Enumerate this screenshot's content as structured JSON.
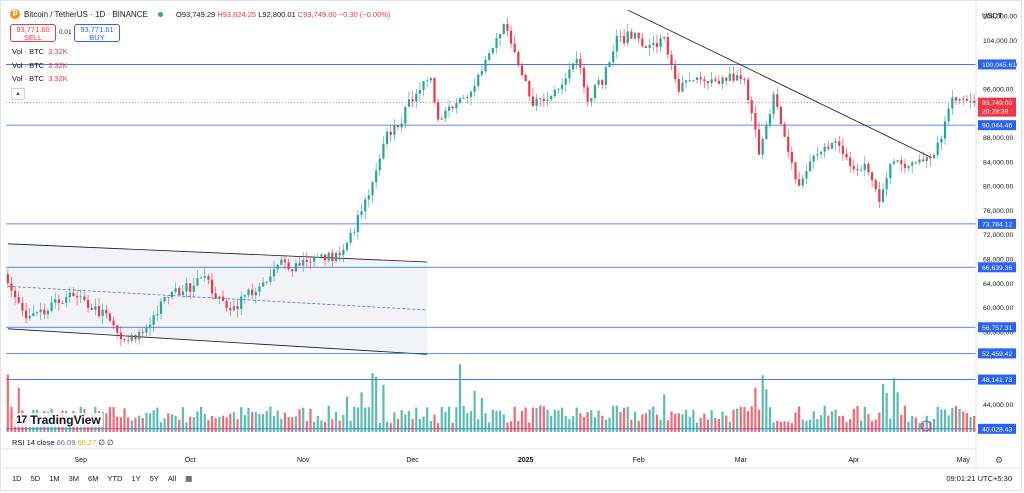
{
  "header": {
    "symbol": "Bitcoin / TetherUS · 1D · BINANCE",
    "open": "O93,749.29",
    "high": "H93,824.25",
    "low": "L92,800.01",
    "close": "C93,749.00",
    "change": "−0.30 (−0.00%)",
    "sell_price": "93,771.60",
    "sell_label": "SELL",
    "spread": "0.01",
    "buy_price": "93,771.61",
    "buy_label": "BUY",
    "vol_label": "Vol · BTC",
    "vol_value": "3.32K"
  },
  "rsi": {
    "label": "RSI 14 close",
    "value1": "66.09",
    "value2": "60.27",
    "value3": "∅",
    "value4": "∅"
  },
  "currency": "USDT",
  "bottom": {
    "timeframes": [
      "1D",
      "5D",
      "1M",
      "3M",
      "6M",
      "YTD",
      "1Y",
      "5Y",
      "All"
    ],
    "clock": "09:01:21 UTC+5:30"
  },
  "watermark": "TradingView",
  "colors": {
    "up": "#26a69a",
    "down": "#f23645",
    "hline": "#2962ff",
    "trend": "#131722",
    "channel_fill": "#eef0f5"
  },
  "chart_data": {
    "type": "candlestick",
    "ylim": [
      40000,
      110000
    ],
    "y_ticks": [
      108000,
      104000,
      100000,
      96000,
      92000,
      88000,
      84000,
      80000,
      76000,
      72000,
      68000,
      64000,
      60000,
      56000,
      52000,
      48000,
      44000
    ],
    "x_labels": [
      "Sep",
      "Oct",
      "Nov",
      "Dec",
      "2025",
      "Feb",
      "Mar",
      "Apr",
      "May"
    ],
    "x_label_index": [
      20,
      50,
      81,
      111,
      142,
      173,
      201,
      232,
      262
    ],
    "price_levels": [
      {
        "label": "100,045.61",
        "value": 100045.61
      },
      {
        "label": "90,044.46",
        "value": 90044.46
      },
      {
        "label": "73,784.12",
        "value": 73784.12
      },
      {
        "label": "66,639.36",
        "value": 66639.36
      },
      {
        "label": "56,757.31",
        "value": 56757.31
      },
      {
        "label": "52,459.42",
        "value": 52459.42
      },
      {
        "label": "48,141.73",
        "value": 48141.73
      },
      {
        "label": "40,028.43",
        "value": 40028.43
      }
    ],
    "last_price": {
      "label": "93,749.00",
      "countdown": "20:28:39",
      "value": 93749
    },
    "channel": {
      "upper": [
        [
          0,
          70500
        ],
        [
          115,
          67500
        ]
      ],
      "mid": [
        [
          0,
          63500
        ],
        [
          115,
          59600
        ]
      ],
      "lower": [
        [
          0,
          56500
        ],
        [
          115,
          52300
        ]
      ]
    },
    "downtrend": [
      [
        170,
        109000
      ],
      [
        253,
        84800
      ]
    ],
    "close_waypoints": [
      [
        0,
        64000
      ],
      [
        5,
        58000
      ],
      [
        10,
        59000
      ],
      [
        16,
        62000
      ],
      [
        22,
        60500
      ],
      [
        27,
        58500
      ],
      [
        32,
        54000
      ],
      [
        37,
        56000
      ],
      [
        44,
        62000
      ],
      [
        50,
        63500
      ],
      [
        53,
        65800
      ],
      [
        58,
        61000
      ],
      [
        62,
        60000
      ],
      [
        66,
        62500
      ],
      [
        70,
        63300
      ],
      [
        75,
        67500
      ],
      [
        78,
        66800
      ],
      [
        82,
        68000
      ],
      [
        88,
        68300
      ],
      [
        92,
        69000
      ],
      [
        96,
        74500
      ],
      [
        100,
        80000
      ],
      [
        104,
        88300
      ],
      [
        108,
        91000
      ],
      [
        112,
        96000
      ],
      [
        116,
        97000
      ],
      [
        118,
        91500
      ],
      [
        122,
        93500
      ],
      [
        126,
        95500
      ],
      [
        130,
        99000
      ],
      [
        134,
        104000
      ],
      [
        136,
        106500
      ],
      [
        140,
        99500
      ],
      [
        144,
        94000
      ],
      [
        148,
        94200
      ],
      [
        152,
        97500
      ],
      [
        156,
        101500
      ],
      [
        159,
        94700
      ],
      [
        163,
        97500
      ],
      [
        167,
        104000
      ],
      [
        172,
        105000
      ],
      [
        176,
        102800
      ],
      [
        180,
        104000
      ],
      [
        184,
        96000
      ],
      [
        188,
        97500
      ],
      [
        192,
        96500
      ],
      [
        196,
        97500
      ],
      [
        199,
        98000
      ],
      [
        202,
        97000
      ],
      [
        206,
        86000
      ],
      [
        210,
        95000
      ],
      [
        214,
        85000
      ],
      [
        217,
        80000
      ],
      [
        220,
        84000
      ],
      [
        224,
        86500
      ],
      [
        228,
        87000
      ],
      [
        232,
        82000
      ],
      [
        235,
        83500
      ],
      [
        239,
        78000
      ],
      [
        242,
        84000
      ],
      [
        246,
        83200
      ],
      [
        250,
        85000
      ],
      [
        253,
        84800
      ],
      [
        256,
        88000
      ],
      [
        258,
        93500
      ],
      [
        260,
        94500
      ],
      [
        262,
        95000
      ],
      [
        265,
        93749
      ]
    ],
    "volume_spikes": [
      [
        0,
        7800
      ],
      [
        3,
        6000
      ],
      [
        38,
        2600
      ],
      [
        93,
        4800
      ],
      [
        97,
        5400
      ],
      [
        100,
        8000
      ],
      [
        101,
        7500
      ],
      [
        103,
        6400
      ],
      [
        124,
        9200
      ],
      [
        128,
        5600
      ],
      [
        130,
        4600
      ],
      [
        150,
        3000
      ],
      [
        180,
        5100
      ],
      [
        205,
        6000
      ],
      [
        207,
        7700
      ],
      [
        208,
        5800
      ],
      [
        240,
        6500
      ],
      [
        241,
        5300
      ],
      [
        243,
        7300
      ],
      [
        244,
        5400
      ]
    ]
  }
}
